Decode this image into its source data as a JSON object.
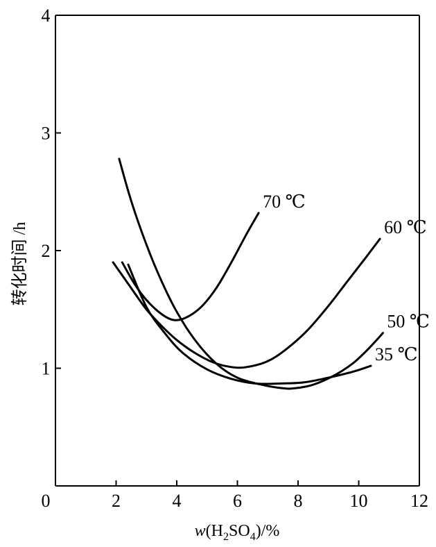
{
  "chart_data": {
    "type": "line",
    "title": "",
    "xlabel": "w(H2SO4)/%",
    "xlabel_parts": {
      "prefix": "w",
      "open": "(H",
      "sub1": "2",
      "mid": "SO",
      "sub2": "4",
      "suffix": ")/%"
    },
    "ylabel": "转化时间 /h",
    "xlim": [
      0,
      12
    ],
    "ylim": [
      0,
      4
    ],
    "x_origin_label": "0",
    "xticks": [
      2,
      4,
      6,
      8,
      10,
      12
    ],
    "yticks": [
      1,
      2,
      3,
      4
    ],
    "grid": false,
    "series": [
      {
        "name": "70 ℃",
        "x": [
          2.2,
          2.6,
          3.0,
          3.5,
          3.9,
          4.3,
          4.8,
          5.3,
          5.8,
          6.3,
          6.7
        ],
        "y": [
          1.9,
          1.72,
          1.58,
          1.46,
          1.41,
          1.43,
          1.52,
          1.68,
          1.9,
          2.14,
          2.32
        ]
      },
      {
        "name": "60 ℃",
        "x": [
          1.9,
          2.5,
          3.0,
          3.5,
          4.0,
          4.6,
          5.2,
          5.8,
          6.3,
          7.0,
          7.6,
          8.3,
          9.0,
          9.6,
          10.2,
          10.7
        ],
        "y": [
          1.9,
          1.68,
          1.5,
          1.36,
          1.24,
          1.13,
          1.05,
          1.01,
          1.01,
          1.06,
          1.16,
          1.32,
          1.53,
          1.73,
          1.93,
          2.1
        ]
      },
      {
        "name": "50 ℃",
        "x": [
          2.1,
          2.5,
          3.0,
          3.5,
          4.0,
          4.6,
          5.3,
          6.0,
          6.8,
          7.5,
          7.9,
          8.5,
          9.2,
          9.8,
          10.3,
          10.8
        ],
        "y": [
          2.78,
          2.42,
          2.05,
          1.74,
          1.48,
          1.24,
          1.04,
          0.92,
          0.86,
          0.83,
          0.83,
          0.86,
          0.94,
          1.04,
          1.16,
          1.3
        ]
      },
      {
        "name": "35 ℃",
        "x": [
          2.4,
          3.0,
          3.6,
          4.2,
          5.0,
          5.8,
          6.6,
          7.4,
          8.2,
          9.0,
          9.8,
          10.4
        ],
        "y": [
          1.88,
          1.52,
          1.3,
          1.13,
          0.99,
          0.91,
          0.87,
          0.87,
          0.88,
          0.92,
          0.97,
          1.02
        ]
      }
    ]
  }
}
